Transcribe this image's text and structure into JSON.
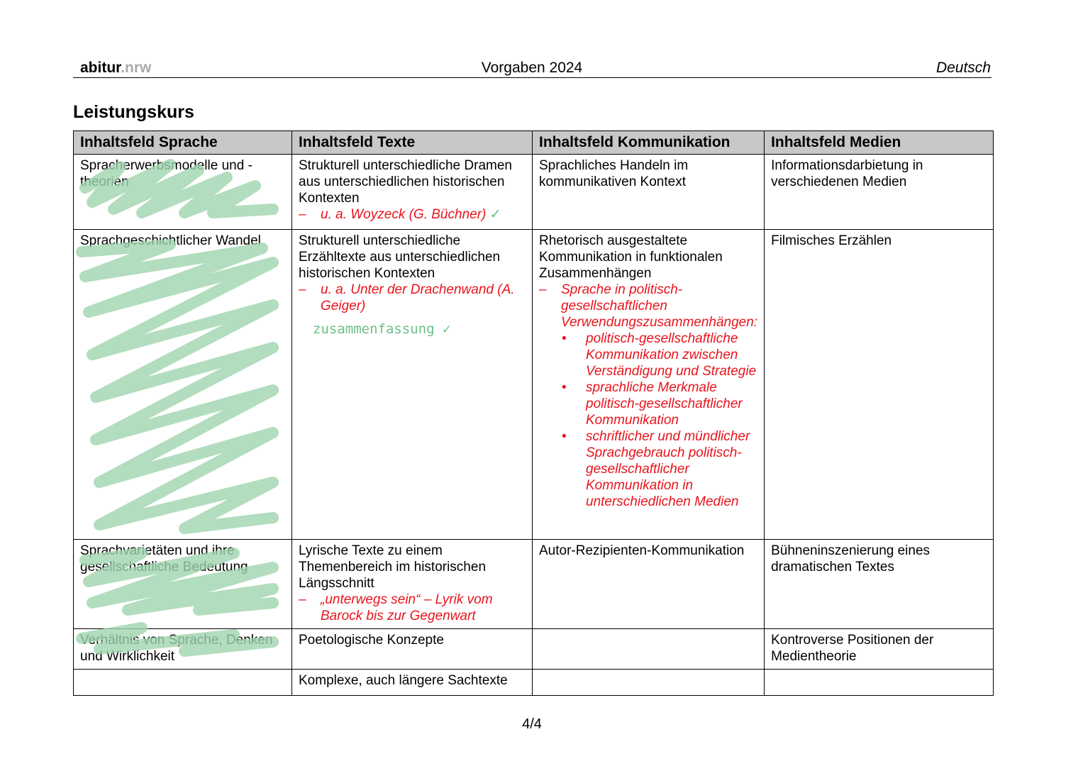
{
  "header": {
    "brand_bold": "abitur",
    "brand_light": ".nrw",
    "center": "Vorgaben 2024",
    "subject": "Deutsch"
  },
  "title": "Leistungskurs",
  "columns": [
    "Inhaltsfeld Sprache",
    "Inhaltsfeld Texte",
    "Inhaltsfeld Kommunikation",
    "Inhaltsfeld Medien"
  ],
  "rows": [
    {
      "sprache": "Spracherwerbsmodelle und -theorien",
      "texte": "Strukturell unterschiedliche Dramen aus unterschiedlichen historischen Kontexten",
      "texte_red": "u. a. Woyzeck (G. Büchner)",
      "kommunikation": "Sprachliches Handeln im kommunikativen Kontext",
      "medien": "Informationsdarbietung in verschiedenen Medien"
    },
    {
      "sprache": "Sprachgeschichtlicher Wandel",
      "texte": "Strukturell unterschiedliche Erzähltexte aus unterschiedlichen historischen Kontexten",
      "texte_red": "u. a. Unter der Drachenwand (A. Geiger)",
      "texte_note": "zusammenfassung",
      "kommunikation": "Rhetorisch ausgestaltete Kommunikation in funktionalen Zusammenhängen",
      "kommunikation_red": "Sprache in politisch-gesellschaftlichen Verwendungszusammenhängen:",
      "kommunikation_bullets": [
        "politisch-gesellschaftliche Kommunikation zwischen Verständigung und Strategie",
        "sprachliche Merkmale politisch-gesellschaftlicher Kommunikation",
        "schriftlicher und mündlicher Sprachgebrauch politisch-gesellschaftlicher Kommunikation in unterschiedlichen Medien"
      ],
      "medien": "Filmisches Erzählen"
    },
    {
      "sprache": "Sprachvarietäten und ihre gesellschaftliche Bedeutung",
      "texte": "Lyrische Texte zu einem Themenbereich im historischen Längsschnitt",
      "texte_red": "„unterwegs sein“ – Lyrik vom Barock bis zur Gegenwart",
      "kommunikation": "Autor-Rezipienten-Kommunikation",
      "medien": "Bühneninszenierung eines dramatischen Textes"
    },
    {
      "sprache": "Verhältnis von Sprache, Denken und Wirklichkeit",
      "texte": "Poetologische Konzepte",
      "kommunikation": "",
      "medien": "Kontroverse Positionen der Medientheorie"
    },
    {
      "sprache": "",
      "texte": "Komplexe, auch längere Sachtexte",
      "kommunikation": "",
      "medien": ""
    }
  ],
  "marks": {
    "dash": "–",
    "bullet": "•",
    "check": "✓"
  },
  "colors": {
    "red": "#e8141c",
    "highlighter_green": "#9fd4ae"
  },
  "page_number": "4/4"
}
